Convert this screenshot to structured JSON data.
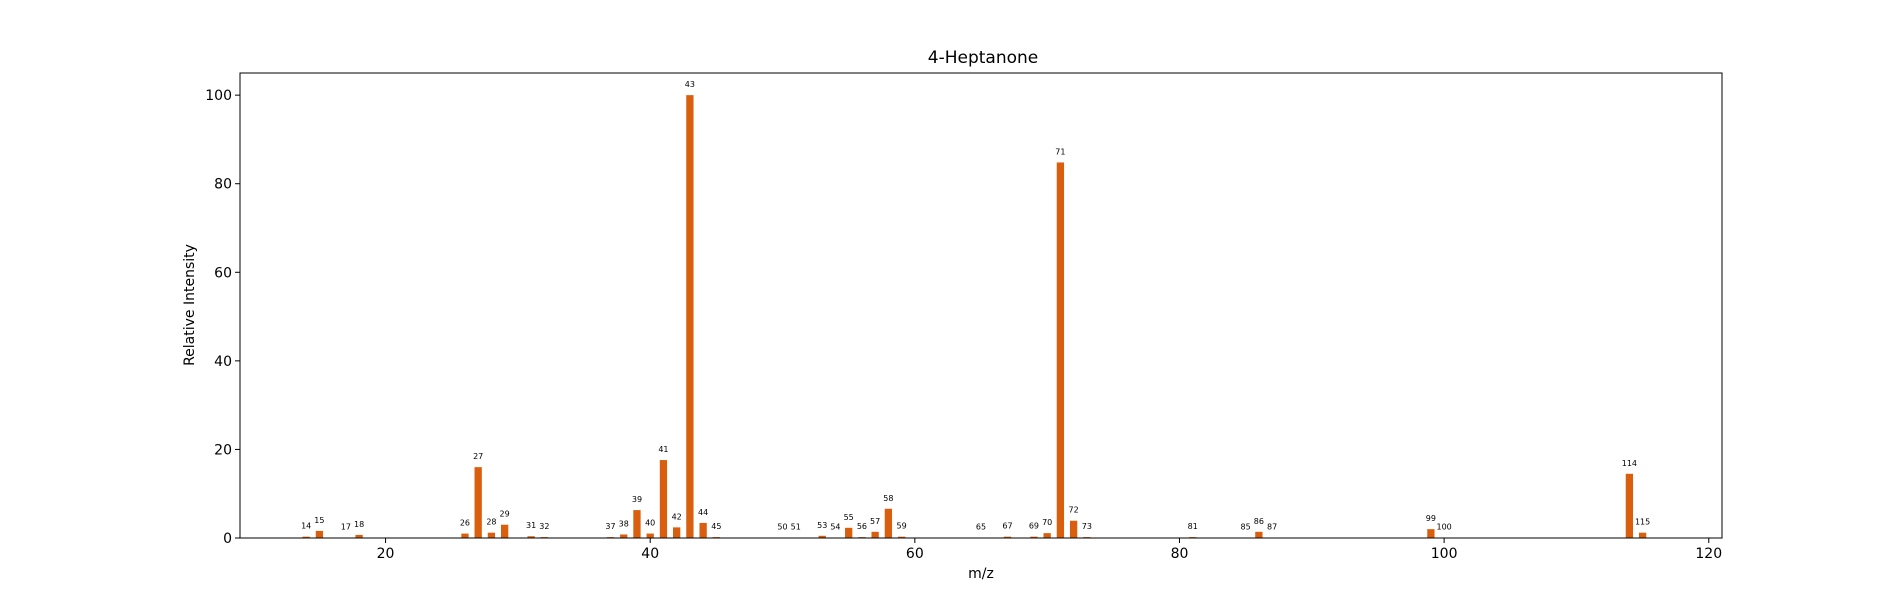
{
  "chart_data": {
    "type": "bar",
    "title": "4-Heptanone",
    "xlabel": "m/z",
    "ylabel": "Relative Intensity",
    "xlim": [
      9,
      121
    ],
    "ylim": [
      0,
      105
    ],
    "xticks": [
      20,
      40,
      60,
      80,
      100,
      120
    ],
    "yticks": [
      0,
      20,
      40,
      60,
      80,
      100
    ],
    "bar_color": "#d95f0e",
    "grid": false,
    "points": [
      {
        "mz": 14,
        "intensity": 0.3
      },
      {
        "mz": 15,
        "intensity": 1.6
      },
      {
        "mz": 17,
        "intensity": 0.1
      },
      {
        "mz": 18,
        "intensity": 0.7
      },
      {
        "mz": 26,
        "intensity": 1.0
      },
      {
        "mz": 27,
        "intensity": 16.0
      },
      {
        "mz": 28,
        "intensity": 1.2
      },
      {
        "mz": 29,
        "intensity": 3.0
      },
      {
        "mz": 31,
        "intensity": 0.4
      },
      {
        "mz": 32,
        "intensity": 0.2
      },
      {
        "mz": 37,
        "intensity": 0.2
      },
      {
        "mz": 38,
        "intensity": 0.8
      },
      {
        "mz": 39,
        "intensity": 6.3
      },
      {
        "mz": 40,
        "intensity": 1.0
      },
      {
        "mz": 41,
        "intensity": 17.6
      },
      {
        "mz": 42,
        "intensity": 2.4
      },
      {
        "mz": 43,
        "intensity": 100.0
      },
      {
        "mz": 44,
        "intensity": 3.4
      },
      {
        "mz": 45,
        "intensity": 0.2
      },
      {
        "mz": 50,
        "intensity": 0.1
      },
      {
        "mz": 51,
        "intensity": 0.1
      },
      {
        "mz": 53,
        "intensity": 0.5
      },
      {
        "mz": 54,
        "intensity": 0.1
      },
      {
        "mz": 55,
        "intensity": 2.3
      },
      {
        "mz": 56,
        "intensity": 0.2
      },
      {
        "mz": 57,
        "intensity": 1.4
      },
      {
        "mz": 58,
        "intensity": 6.6
      },
      {
        "mz": 59,
        "intensity": 0.3
      },
      {
        "mz": 65,
        "intensity": 0.1
      },
      {
        "mz": 67,
        "intensity": 0.3
      },
      {
        "mz": 69,
        "intensity": 0.3
      },
      {
        "mz": 70,
        "intensity": 1.1
      },
      {
        "mz": 71,
        "intensity": 84.8
      },
      {
        "mz": 72,
        "intensity": 3.9
      },
      {
        "mz": 73,
        "intensity": 0.2
      },
      {
        "mz": 81,
        "intensity": 0.2
      },
      {
        "mz": 85,
        "intensity": 0.1
      },
      {
        "mz": 86,
        "intensity": 1.4
      },
      {
        "mz": 87,
        "intensity": 0.1
      },
      {
        "mz": 99,
        "intensity": 2.0
      },
      {
        "mz": 100,
        "intensity": 0.1
      },
      {
        "mz": 114,
        "intensity": 14.5
      },
      {
        "mz": 115,
        "intensity": 1.2
      }
    ]
  }
}
